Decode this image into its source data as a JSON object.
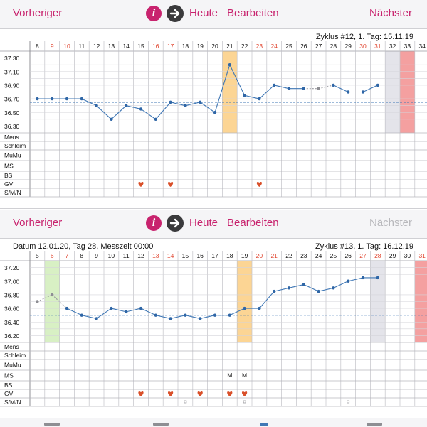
{
  "nav": {
    "previous": "Vorheriger",
    "today": "Heute",
    "edit": "Bearbeiten",
    "next": "Nächster",
    "info_glyph": "i"
  },
  "row_labels": [
    "Mens",
    "Schleim",
    "MuMu",
    "MS",
    "BS",
    "GV",
    "S/M/N"
  ],
  "icons": {
    "heart_color": "#d9502a",
    "accent": "#c8236e",
    "line_color": "#3f77b5",
    "dashed_color": "#3f77b5",
    "ovulation_band": "#fcd594",
    "period_band": "#f4a0a0",
    "cycle_end_band": "#e4e4ea",
    "first_day_band": "#d8f0c4",
    "weekend_color": "#e0442e"
  },
  "charts": [
    {
      "cycle_info": "Zyklus #12, 1. Tag: 15.11.19",
      "date_info": "",
      "next_enabled": true,
      "day_labels": [
        "8",
        "9",
        "10",
        "11",
        "12",
        "13",
        "14",
        "15",
        "16",
        "17",
        "18",
        "19",
        "20",
        "21",
        "22",
        "23",
        "24",
        "25",
        "26",
        "27",
        "28",
        "29",
        "30",
        "31",
        "32",
        "33",
        "34"
      ],
      "weekend_flags": [
        false,
        true,
        true,
        false,
        false,
        false,
        false,
        false,
        true,
        true,
        false,
        false,
        false,
        false,
        false,
        true,
        true,
        false,
        false,
        false,
        false,
        false,
        true,
        true,
        false,
        false,
        false
      ],
      "y_ticks": [
        "37.30",
        "37.10",
        "36.90",
        "36.70",
        "36.50",
        "36.30"
      ],
      "y_range": [
        36.2,
        37.4
      ],
      "coverline": 36.65,
      "temperatures": [
        36.7,
        36.7,
        36.7,
        36.7,
        36.6,
        36.4,
        36.6,
        36.55,
        36.4,
        36.65,
        36.6,
        36.65,
        36.5,
        37.2,
        36.75,
        36.7,
        36.9,
        36.85,
        36.85,
        36.85,
        36.9,
        36.8,
        36.8,
        36.9,
        null,
        null,
        null
      ],
      "gray_points": [
        false,
        false,
        false,
        false,
        false,
        false,
        false,
        false,
        false,
        false,
        false,
        false,
        false,
        false,
        false,
        false,
        false,
        false,
        false,
        true,
        false,
        false,
        false,
        false,
        false,
        false,
        false
      ],
      "ovulation_day": "21",
      "cycle_end_day": "32",
      "period_day": "33",
      "first_day": "",
      "ms_marks": [],
      "gv_hearts": [
        "15",
        "17",
        "23"
      ],
      "smn_dots": []
    },
    {
      "cycle_info": "Zyklus #13, 1. Tag: 16.12.19",
      "date_info": "Datum 12.01.20, Tag 28, Messzeit 00:00",
      "next_enabled": false,
      "day_labels": [
        "5",
        "6",
        "7",
        "8",
        "9",
        "10",
        "11",
        "12",
        "13",
        "14",
        "15",
        "16",
        "17",
        "18",
        "19",
        "20",
        "21",
        "22",
        "23",
        "24",
        "25",
        "26",
        "27",
        "28",
        "29",
        "30",
        "31"
      ],
      "weekend_flags": [
        false,
        true,
        true,
        false,
        false,
        false,
        false,
        false,
        true,
        true,
        false,
        false,
        false,
        false,
        false,
        true,
        true,
        false,
        false,
        false,
        false,
        false,
        true,
        true,
        false,
        false,
        true
      ],
      "y_ticks": [
        "37.20",
        "37.00",
        "36.80",
        "36.60",
        "36.40",
        "36.20"
      ],
      "y_range": [
        36.1,
        37.3
      ],
      "coverline": 36.5,
      "temperatures": [
        36.7,
        36.8,
        36.6,
        36.5,
        36.45,
        36.6,
        36.55,
        36.6,
        36.5,
        36.45,
        36.5,
        36.45,
        36.5,
        36.5,
        36.6,
        36.6,
        36.85,
        36.9,
        36.95,
        36.85,
        36.9,
        37.0,
        37.05,
        37.05,
        null,
        null,
        null
      ],
      "gray_points": [
        true,
        true,
        false,
        false,
        false,
        false,
        false,
        false,
        false,
        false,
        false,
        false,
        false,
        false,
        false,
        false,
        false,
        false,
        false,
        false,
        false,
        false,
        false,
        false,
        false,
        false,
        false
      ],
      "ovulation_day": "19",
      "cycle_end_day": "28",
      "period_day": "31",
      "first_day": "6",
      "ms_marks": [
        {
          "day": "18",
          "text": "M"
        },
        {
          "day": "19",
          "text": "M"
        }
      ],
      "gv_hearts": [
        "12",
        "14",
        "16",
        "18",
        "19"
      ],
      "smn_dots": [
        "15",
        "19",
        "26"
      ]
    }
  ]
}
